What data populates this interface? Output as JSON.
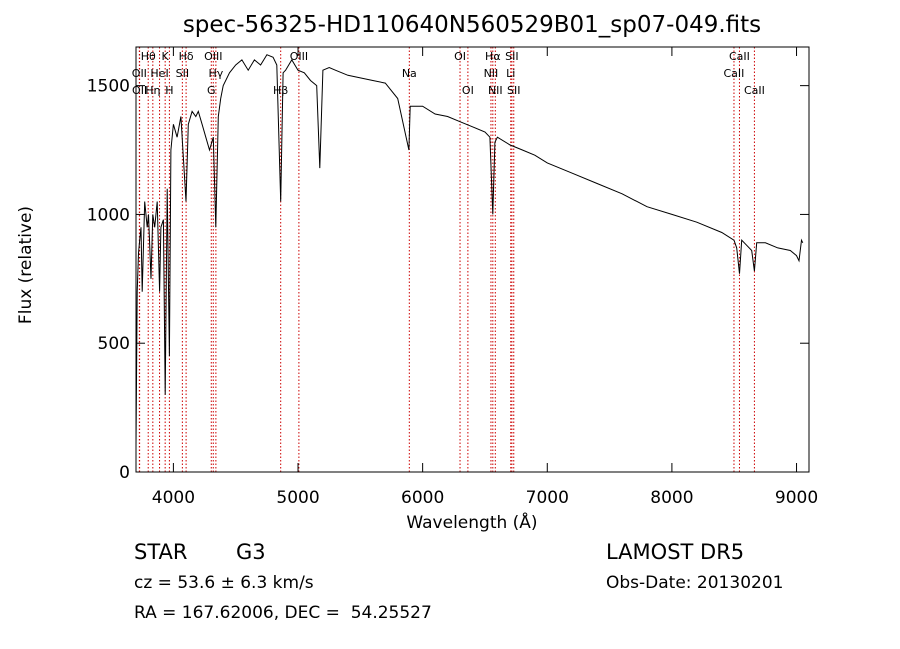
{
  "chart_data": {
    "type": "line",
    "title": "spec-56325-HD110640N560529B01_sp07-049.fits",
    "xlabel": "Wavelength (Å)",
    "ylabel": "Flux (relative)",
    "xlim": [
      3700,
      9100
    ],
    "ylim": [
      0,
      1650
    ],
    "xticks": [
      4000,
      5000,
      6000,
      7000,
      8000,
      9000
    ],
    "xtick_labels": [
      "4000",
      "5000",
      "6000",
      "7000",
      "8000",
      "9000"
    ],
    "yticks": [
      0,
      500,
      1000,
      1500
    ],
    "ytick_labels": [
      "0",
      "500",
      "1000",
      "1500"
    ],
    "grid": false,
    "line_color": "#000000",
    "marker_color": "#cc0000",
    "series": [
      {
        "x": [
          3700,
          3710,
          3720,
          3730,
          3740,
          3750,
          3770,
          3790,
          3800,
          3820,
          3835,
          3850,
          3870,
          3889,
          3900,
          3920,
          3934,
          3950,
          3968,
          3980,
          4000,
          4030,
          4060,
          4101,
          4120,
          4150,
          4180,
          4200,
          4230,
          4260,
          4290,
          4320,
          4340,
          4360,
          4380,
          4400,
          4450,
          4500,
          4550,
          4600,
          4650,
          4700,
          4750,
          4800,
          4830,
          4861,
          4880,
          4900,
          4950,
          5000,
          5050,
          5100,
          5150,
          5175,
          5200,
          5250,
          5300,
          5400,
          5500,
          5600,
          5700,
          5800,
          5890,
          5900,
          6000,
          6100,
          6200,
          6300,
          6400,
          6500,
          6540,
          6563,
          6580,
          6600,
          6700,
          6800,
          6900,
          7000,
          7200,
          7400,
          7600,
          7800,
          8000,
          8200,
          8400,
          8498,
          8520,
          8542,
          8560,
          8600,
          8640,
          8662,
          8680,
          8750,
          8850,
          8950,
          9000,
          9020,
          9040,
          9050
        ],
        "y": [
          100,
          700,
          850,
          900,
          950,
          700,
          1050,
          950,
          1000,
          750,
          1000,
          950,
          1050,
          700,
          950,
          980,
          300,
          1100,
          450,
          1250,
          1350,
          1300,
          1380,
          1050,
          1350,
          1400,
          1380,
          1400,
          1350,
          1300,
          1250,
          1300,
          950,
          1380,
          1450,
          1500,
          1550,
          1580,
          1600,
          1560,
          1600,
          1580,
          1620,
          1610,
          1580,
          1050,
          1550,
          1560,
          1600,
          1560,
          1550,
          1520,
          1500,
          1180,
          1560,
          1570,
          1560,
          1540,
          1530,
          1520,
          1510,
          1450,
          1250,
          1420,
          1420,
          1390,
          1380,
          1360,
          1340,
          1320,
          1300,
          1000,
          1280,
          1300,
          1270,
          1250,
          1230,
          1200,
          1160,
          1120,
          1080,
          1030,
          1000,
          970,
          930,
          900,
          870,
          770,
          900,
          880,
          860,
          780,
          890,
          890,
          870,
          860,
          840,
          820,
          900,
          890
        ]
      }
    ],
    "lines": [
      {
        "label": "OII",
        "x": 3727,
        "row": 1
      },
      {
        "label": "OII",
        "x": 3729,
        "row": 2
      },
      {
        "label": "Hθ",
        "x": 3798,
        "row": 0
      },
      {
        "label": "Hη",
        "x": 3835,
        "row": 2
      },
      {
        "label": "HeI",
        "x": 3889,
        "row": 1
      },
      {
        "label": "K",
        "x": 3934,
        "row": 0
      },
      {
        "label": "H",
        "x": 3968,
        "row": 2
      },
      {
        "label": "SII",
        "x": 4072,
        "row": 1
      },
      {
        "label": "Hδ",
        "x": 4102,
        "row": 0
      },
      {
        "label": "G",
        "x": 4304,
        "row": 2
      },
      {
        "label": "OIII",
        "x": 4320,
        "row": 0
      },
      {
        "label": "Hγ",
        "x": 4341,
        "row": 1
      },
      {
        "label": "Hβ",
        "x": 4861,
        "row": 2
      },
      {
        "label": "OIII",
        "x": 5007,
        "row": 0
      },
      {
        "label": "Na",
        "x": 5893,
        "row": 1
      },
      {
        "label": "OI",
        "x": 6300,
        "row": 0
      },
      {
        "label": "OI",
        "x": 6363,
        "row": 2
      },
      {
        "label": "NII",
        "x": 6548,
        "row": 1
      },
      {
        "label": "Hα",
        "x": 6563,
        "row": 0
      },
      {
        "label": "NII",
        "x": 6583,
        "row": 2
      },
      {
        "label": "Li",
        "x": 6707,
        "row": 1
      },
      {
        "label": "SII",
        "x": 6716,
        "row": 0
      },
      {
        "label": "SII",
        "x": 6731,
        "row": 2
      },
      {
        "label": "CaII",
        "x": 8498,
        "row": 1
      },
      {
        "label": "CaII",
        "x": 8542,
        "row": 0
      },
      {
        "label": "CaII",
        "x": 8662,
        "row": 2
      }
    ]
  },
  "info": {
    "class_label": "STAR",
    "subclass": "G3",
    "survey": "LAMOST DR5",
    "cz": "cz = 53.6 ± 6.3 km/s",
    "obs_date": "Obs-Date: 20130201",
    "coords": "RA = 167.62006, DEC =  54.25527"
  }
}
